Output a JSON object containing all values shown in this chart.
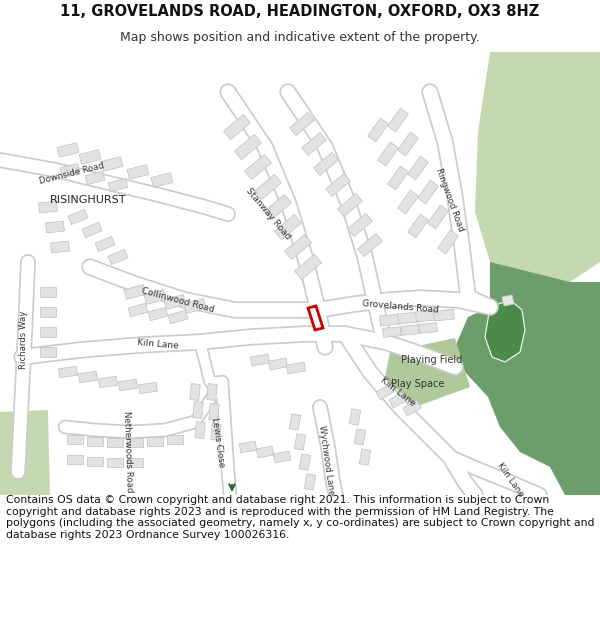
{
  "title_line1": "11, GROVELANDS ROAD, HEADINGTON, OXFORD, OX3 8HZ",
  "title_line2": "Map shows position and indicative extent of the property.",
  "footer_text": "Contains OS data © Crown copyright and database right 2021. This information is subject to Crown copyright and database rights 2023 and is reproduced with the permission of HM Land Registry. The polygons (including the associated geometry, namely x, y co-ordinates) are subject to Crown copyright and database rights 2023 Ordnance Survey 100026316.",
  "bg_color": "#ffffff",
  "map_bg": "#efefef",
  "road_color": "#ffffff",
  "road_outline": "#cccccc",
  "building_color": "#e2e2e2",
  "building_outline": "#c0c0c0",
  "green_light": "#c5d9b0",
  "green_dark": "#6b9e6b",
  "green_play": "#afc99a",
  "highlight_color": "#cc0000",
  "title_fontsize": 10.5,
  "footer_fontsize": 7.8
}
